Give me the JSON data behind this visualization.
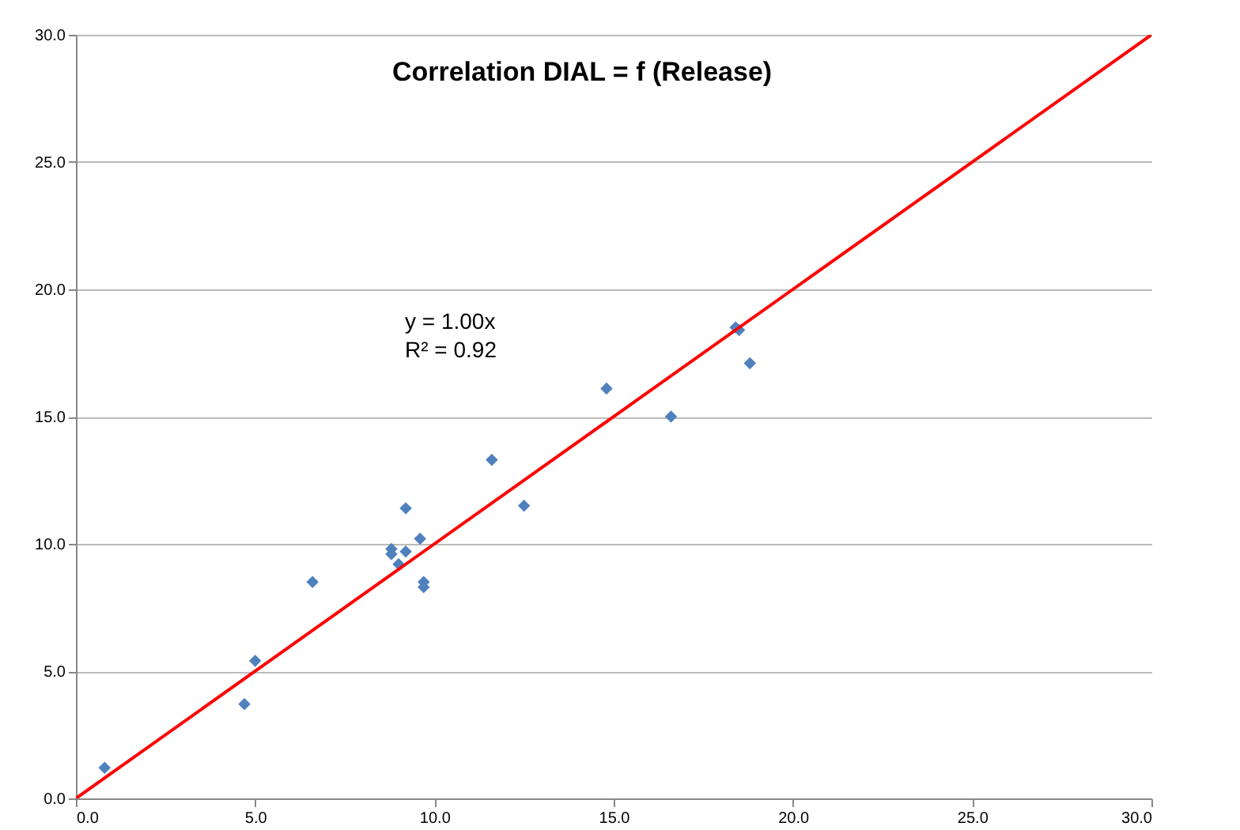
{
  "chart_data": {
    "type": "scatter",
    "title": "Correlation DIAL = f (Release)",
    "annotations": [
      "y = 1.00x",
      "R² = 0.92"
    ],
    "grid": "y",
    "xlim": [
      0,
      30
    ],
    "ylim": [
      0,
      30
    ],
    "xticks": [
      {
        "value": 0,
        "label": "0.0"
      },
      {
        "value": 5,
        "label": "5.0"
      },
      {
        "value": 10,
        "label": "10.0"
      },
      {
        "value": 15,
        "label": "15.0"
      },
      {
        "value": 20,
        "label": "20.0"
      },
      {
        "value": 25,
        "label": "25.0"
      },
      {
        "value": 30,
        "label": "30.0"
      }
    ],
    "yticks": [
      {
        "value": 0,
        "label": "0.0"
      },
      {
        "value": 5,
        "label": "5.0"
      },
      {
        "value": 10,
        "label": "10.0"
      },
      {
        "value": 15,
        "label": "15.0"
      },
      {
        "value": 20,
        "label": "20.0"
      },
      {
        "value": 25,
        "label": "25.0"
      },
      {
        "value": 30,
        "label": "30.0"
      }
    ],
    "series": [
      {
        "marker": "diamond",
        "color": "#4f81bd",
        "x": [
          0.8,
          4.7,
          5.0,
          6.6,
          8.8,
          8.8,
          9.0,
          9.2,
          9.2,
          9.6,
          9.7,
          9.7,
          11.6,
          12.5,
          14.8,
          16.6,
          18.4,
          18.5,
          18.8
        ],
        "values": [
          1.2,
          3.7,
          5.4,
          8.5,
          9.8,
          9.6,
          9.2,
          9.7,
          11.4,
          10.2,
          8.5,
          8.3,
          13.3,
          11.5,
          16.1,
          15.0,
          18.5,
          18.4,
          17.1
        ]
      },
      {
        "type": "line",
        "color": "#ff0000",
        "x": [
          0,
          30
        ],
        "values": [
          0,
          30
        ]
      }
    ]
  }
}
